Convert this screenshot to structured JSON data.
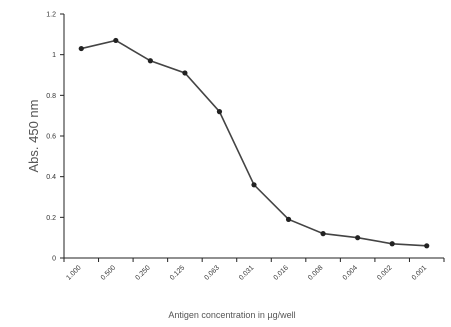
{
  "chart_data": {
    "type": "line",
    "title": "",
    "xlabel": "Antigen concentration in µg/well",
    "ylabel": "Abs. 450 nm",
    "categories": [
      "1.000",
      "0.500",
      "0.250",
      "0.125",
      "0.063",
      "0.031",
      "0.016",
      "0.008",
      "0.004",
      "0.002",
      "0.001"
    ],
    "series": [
      {
        "name": "",
        "values": [
          1.03,
          1.07,
          0.97,
          0.91,
          0.72,
          0.36,
          0.19,
          0.12,
          0.1,
          0.07,
          0.06
        ]
      }
    ],
    "ylim": [
      0,
      1.2
    ],
    "yticks": [
      "0",
      "0.2",
      "0.4",
      "0.6",
      "0.8",
      "1",
      "1.2"
    ],
    "grid": false,
    "legend": "none",
    "colors": {
      "line": "#444444",
      "marker": "#222222",
      "axis": "#222222"
    }
  }
}
